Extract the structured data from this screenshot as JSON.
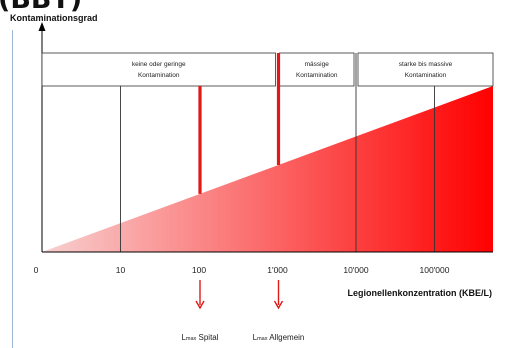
{
  "header": {
    "fragment": "(BBT)"
  },
  "chart_data": {
    "type": "area",
    "title": "Kontaminationsgrad",
    "xlabel": "Legionellenkonzentration (KBE/L)",
    "ylabel": "",
    "x_scale": "log",
    "x_ticks": [
      {
        "value": 0,
        "label": "0"
      },
      {
        "value": 10,
        "label": "10"
      },
      {
        "value": 100,
        "label": "100"
      },
      {
        "value": 1000,
        "label": "1'000"
      },
      {
        "value": 10000,
        "label": "10'000"
      },
      {
        "value": 100000,
        "label": "100'000"
      }
    ],
    "zones": [
      {
        "line1": "keine oder geringe",
        "line2": "Kontamination",
        "from": 0,
        "to": 1000
      },
      {
        "line1": "mässige",
        "line2": "Kontamination",
        "from": 1000,
        "to": 10000
      },
      {
        "line1": "starke bis massive",
        "line2": "Kontamination",
        "from": 10000,
        "to": 1000000
      }
    ],
    "thresholds": [
      {
        "value": 100,
        "label_main": "L",
        "label_sub": "max",
        "label_rest": " Spital"
      },
      {
        "value": 1000,
        "label_main": "L",
        "label_sub": "max",
        "label_rest": " Allgemein"
      }
    ],
    "colors": {
      "gradient_start": "#f8d0d0",
      "gradient_end": "#ff0000",
      "threshold": "#e01818",
      "axis": "#000000",
      "divider": "#333333"
    }
  }
}
